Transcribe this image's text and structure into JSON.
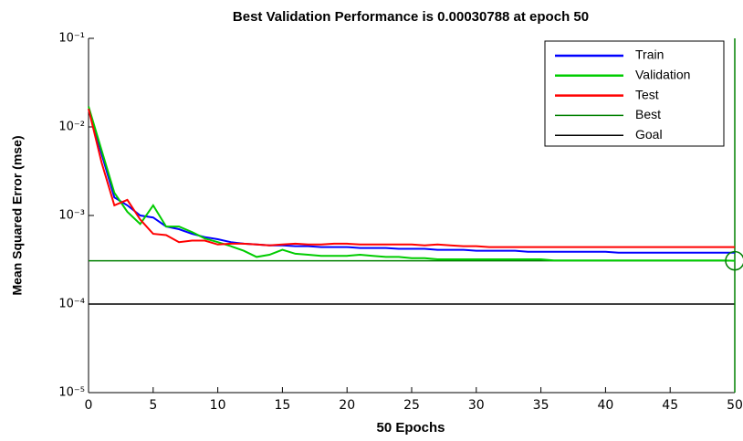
{
  "chart_data": {
    "type": "line",
    "title": "Best Validation Performance is 0.00030788 at epoch 50",
    "x_label": "50 Epochs",
    "y_label": "Mean Squared Error  (mse)",
    "yscale": "log",
    "xlim": [
      0,
      50
    ],
    "ylim": [
      1e-05,
      0.1
    ],
    "xticks": [
      0,
      5,
      10,
      15,
      20,
      25,
      30,
      35,
      40,
      45,
      50
    ],
    "yticks": [
      {
        "value": 1e-05,
        "label": "10⁻⁵"
      },
      {
        "value": 0.0001,
        "label": "10⁻⁴"
      },
      {
        "value": 0.001,
        "label": "10⁻³"
      },
      {
        "value": 0.01,
        "label": "10⁻²"
      },
      {
        "value": 0.1,
        "label": "10⁻¹"
      }
    ],
    "x": [
      0,
      1,
      2,
      3,
      4,
      5,
      6,
      7,
      8,
      9,
      10,
      11,
      12,
      13,
      14,
      15,
      16,
      17,
      18,
      19,
      20,
      21,
      22,
      23,
      24,
      25,
      26,
      27,
      28,
      29,
      30,
      31,
      32,
      33,
      34,
      35,
      36,
      37,
      38,
      39,
      40,
      41,
      42,
      43,
      44,
      45,
      46,
      47,
      48,
      49,
      50
    ],
    "series": [
      {
        "name": "Train",
        "color": "#0000ff",
        "values": [
          0.016,
          0.005,
          0.0016,
          0.0013,
          0.001,
          0.00095,
          0.00075,
          0.0007,
          0.00062,
          0.00057,
          0.00054,
          0.0005,
          0.00048,
          0.00047,
          0.00046,
          0.00046,
          0.00045,
          0.00045,
          0.00044,
          0.00044,
          0.00044,
          0.00043,
          0.00043,
          0.00043,
          0.00042,
          0.00042,
          0.00042,
          0.00041,
          0.00041,
          0.00041,
          0.0004,
          0.0004,
          0.0004,
          0.0004,
          0.00039,
          0.00039,
          0.00039,
          0.00039,
          0.00039,
          0.00039,
          0.00039,
          0.00038,
          0.00038,
          0.00038,
          0.00038,
          0.00038,
          0.00038,
          0.00038,
          0.00038,
          0.00038,
          0.00038
        ]
      },
      {
        "name": "Validation",
        "color": "#00cc00",
        "values": [
          0.017,
          0.0055,
          0.0018,
          0.0011,
          0.0008,
          0.0013,
          0.00075,
          0.00075,
          0.00065,
          0.00055,
          0.0005,
          0.00045,
          0.0004,
          0.00034,
          0.00036,
          0.00041,
          0.00037,
          0.00036,
          0.00035,
          0.00035,
          0.00035,
          0.00036,
          0.00035,
          0.00034,
          0.00034,
          0.00033,
          0.00033,
          0.00032,
          0.00032,
          0.00032,
          0.00032,
          0.00032,
          0.00032,
          0.00032,
          0.00032,
          0.00032,
          0.00031,
          0.00031,
          0.00031,
          0.00031,
          0.00031,
          0.00031,
          0.00031,
          0.00031,
          0.00031,
          0.00031,
          0.00031,
          0.00031,
          0.00031,
          0.00031,
          0.00030788
        ]
      },
      {
        "name": "Test",
        "color": "#ff0000",
        "values": [
          0.016,
          0.004,
          0.0013,
          0.0015,
          0.0009,
          0.00062,
          0.0006,
          0.0005,
          0.00052,
          0.00052,
          0.00047,
          0.00048,
          0.00048,
          0.00047,
          0.00046,
          0.00047,
          0.00048,
          0.00047,
          0.00047,
          0.00048,
          0.00048,
          0.00047,
          0.00047,
          0.00047,
          0.00047,
          0.00047,
          0.00046,
          0.00047,
          0.00046,
          0.00045,
          0.00045,
          0.00044,
          0.00044,
          0.00044,
          0.00044,
          0.00044,
          0.00044,
          0.00044,
          0.00044,
          0.00044,
          0.00044,
          0.00044,
          0.00044,
          0.00044,
          0.00044,
          0.00044,
          0.00044,
          0.00044,
          0.00044,
          0.00044,
          0.00044
        ]
      }
    ],
    "best": {
      "name": "Best",
      "color": "#008000",
      "epoch": 50,
      "value": 0.00030788
    },
    "goal": {
      "name": "Goal",
      "color": "#000000",
      "value": 0.0001
    }
  }
}
